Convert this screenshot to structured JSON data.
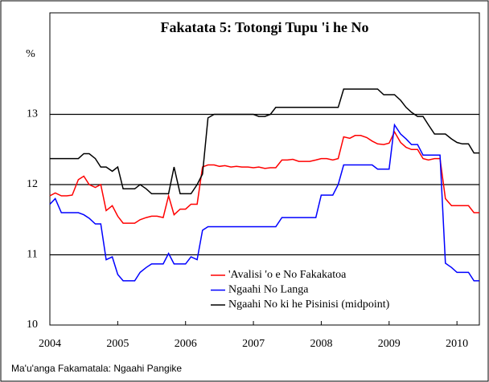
{
  "chart_data": {
    "type": "line",
    "title": "Fakatata 5: Totongi Tupu 'i he No",
    "y_label": "%",
    "source": "Ma'u'anga Fakamatala: Ngaahi Pangike",
    "x": [
      2004,
      2004.08,
      2004.17,
      2004.25,
      2004.33,
      2004.42,
      2004.5,
      2004.58,
      2004.67,
      2004.75,
      2004.83,
      2004.92,
      2005,
      2005.08,
      2005.17,
      2005.25,
      2005.33,
      2005.42,
      2005.5,
      2005.58,
      2005.67,
      2005.75,
      2005.83,
      2005.92,
      2006,
      2006.08,
      2006.17,
      2006.25,
      2006.33,
      2006.42,
      2006.5,
      2006.58,
      2006.67,
      2006.75,
      2006.83,
      2006.92,
      2007,
      2007.08,
      2007.17,
      2007.25,
      2007.33,
      2007.42,
      2007.5,
      2007.58,
      2007.67,
      2007.75,
      2007.83,
      2007.92,
      2008,
      2008.08,
      2008.17,
      2008.25,
      2008.33,
      2008.42,
      2008.5,
      2008.58,
      2008.67,
      2008.75,
      2008.83,
      2008.92,
      2009,
      2009.08,
      2009.17,
      2009.25,
      2009.33,
      2009.42,
      2009.5,
      2009.58,
      2009.67,
      2009.75,
      2009.83,
      2009.92,
      2010,
      2010.08,
      2010.17,
      2010.25,
      2010.33
    ],
    "series": [
      {
        "name": "'Avalisi 'o e No Fakakatoa",
        "color": "#ff0000",
        "values": [
          11.84,
          11.88,
          11.84,
          11.84,
          11.85,
          12.07,
          12.12,
          12.0,
          11.96,
          12.0,
          11.63,
          11.7,
          11.55,
          11.45,
          11.45,
          11.45,
          11.5,
          11.53,
          11.55,
          11.55,
          11.53,
          11.84,
          11.57,
          11.65,
          11.65,
          11.72,
          11.72,
          12.25,
          12.28,
          12.28,
          12.26,
          12.27,
          12.25,
          12.26,
          12.25,
          12.25,
          12.24,
          12.25,
          12.23,
          12.24,
          12.24,
          12.35,
          12.35,
          12.36,
          12.33,
          12.33,
          12.33,
          12.35,
          12.37,
          12.37,
          12.35,
          12.37,
          12.68,
          12.66,
          12.7,
          12.7,
          12.67,
          12.62,
          12.58,
          12.57,
          12.59,
          12.75,
          12.6,
          12.53,
          12.5,
          12.5,
          12.37,
          12.35,
          12.37,
          12.37,
          11.8,
          11.7,
          11.7,
          11.7,
          11.7,
          11.6,
          11.6
        ]
      },
      {
        "name": "Ngaahi No Langa",
        "color": "#0000ff",
        "values": [
          11.72,
          11.8,
          11.6,
          11.6,
          11.6,
          11.6,
          11.57,
          11.52,
          11.44,
          11.44,
          10.93,
          10.97,
          10.72,
          10.63,
          10.63,
          10.63,
          10.75,
          10.82,
          10.87,
          10.87,
          10.87,
          11.02,
          10.87,
          10.87,
          10.87,
          10.97,
          10.93,
          11.35,
          11.4,
          11.4,
          11.4,
          11.4,
          11.4,
          11.4,
          11.4,
          11.4,
          11.4,
          11.4,
          11.4,
          11.4,
          11.4,
          11.53,
          11.53,
          11.53,
          11.53,
          11.53,
          11.53,
          11.53,
          11.85,
          11.85,
          11.85,
          12.0,
          12.28,
          12.28,
          12.28,
          12.28,
          12.28,
          12.28,
          12.22,
          12.22,
          12.22,
          12.85,
          12.72,
          12.65,
          12.57,
          12.57,
          12.42,
          12.42,
          12.42,
          12.42,
          10.88,
          10.82,
          10.75,
          10.75,
          10.75,
          10.63,
          10.63
        ]
      },
      {
        "name": "Ngaahi No ki he Pisinisi (midpoint)",
        "color": "#000000",
        "values": [
          12.37,
          12.37,
          12.37,
          12.37,
          12.37,
          12.37,
          12.44,
          12.44,
          12.37,
          12.25,
          12.25,
          12.19,
          12.25,
          11.94,
          11.94,
          11.94,
          12.0,
          11.94,
          11.87,
          11.87,
          11.87,
          11.87,
          12.25,
          11.87,
          11.87,
          11.87,
          12.0,
          12.15,
          12.95,
          13.0,
          13.0,
          13.0,
          13.0,
          13.0,
          13.0,
          13.0,
          13.0,
          12.97,
          12.97,
          13.0,
          13.1,
          13.1,
          13.1,
          13.1,
          13.1,
          13.1,
          13.1,
          13.1,
          13.1,
          13.1,
          13.1,
          13.1,
          13.36,
          13.36,
          13.36,
          13.36,
          13.36,
          13.36,
          13.36,
          13.28,
          13.28,
          13.28,
          13.2,
          13.1,
          13.03,
          12.97,
          12.97,
          12.85,
          12.72,
          12.72,
          12.72,
          12.65,
          12.6,
          12.58,
          12.58,
          12.45,
          12.45
        ]
      }
    ],
    "xlim": [
      2004,
      2010.33
    ],
    "xticks": [
      2004,
      2005,
      2006,
      2007,
      2008,
      2009,
      2010
    ],
    "ylim": [
      10,
      14
    ],
    "yticks": [
      10,
      11,
      12,
      13
    ],
    "grid": true
  }
}
